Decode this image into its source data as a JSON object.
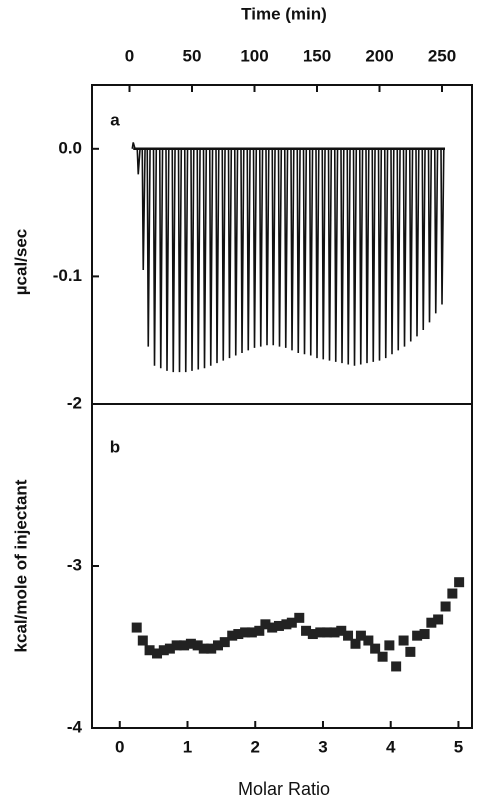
{
  "chart_data": [
    {
      "type": "impulse",
      "panel_label": "a",
      "x_label": "Time (min)",
      "y_label": "µcal/sec",
      "color": "#111111",
      "x": [
        3,
        7,
        11,
        15,
        20,
        25,
        30,
        35,
        40,
        45,
        50,
        55,
        60,
        65,
        70,
        75,
        80,
        85,
        90,
        95,
        100,
        105,
        110,
        115,
        120,
        125,
        130,
        135,
        140,
        145,
        150,
        155,
        160,
        165,
        170,
        175,
        180,
        185,
        190,
        195,
        200,
        205,
        210,
        215,
        220,
        225,
        230,
        235,
        240,
        245,
        250
      ],
      "values": [
        0.005,
        -0.02,
        -0.095,
        -0.155,
        -0.17,
        -0.172,
        -0.174,
        -0.175,
        -0.175,
        -0.175,
        -0.174,
        -0.173,
        -0.172,
        -0.17,
        -0.168,
        -0.166,
        -0.164,
        -0.162,
        -0.16,
        -0.158,
        -0.156,
        -0.155,
        -0.154,
        -0.154,
        -0.155,
        -0.156,
        -0.158,
        -0.16,
        -0.161,
        -0.162,
        -0.164,
        -0.165,
        -0.166,
        -0.167,
        -0.168,
        -0.169,
        -0.17,
        -0.169,
        -0.168,
        -0.167,
        -0.166,
        -0.164,
        -0.161,
        -0.158,
        -0.155,
        -0.151,
        -0.147,
        -0.142,
        -0.136,
        -0.129,
        -0.122
      ],
      "xlim": [
        -30,
        274
      ],
      "xticks": [
        0,
        50,
        100,
        150,
        200,
        250
      ],
      "ylim": [
        -0.2,
        0.05
      ],
      "yticks": [
        {
          "value": 0,
          "label": "0.0"
        },
        -0.1
      ]
    },
    {
      "type": "scatter",
      "panel_label": "b",
      "x_label": "Molar Ratio",
      "y_label": "kcal/mole of injectant",
      "color": "#222222",
      "x": [
        0.25,
        0.34,
        0.44,
        0.55,
        0.65,
        0.74,
        0.84,
        0.95,
        1.05,
        1.15,
        1.24,
        1.35,
        1.45,
        1.55,
        1.66,
        1.75,
        1.85,
        1.95,
        2.06,
        2.15,
        2.25,
        2.35,
        2.46,
        2.54,
        2.65,
        2.75,
        2.85,
        2.96,
        3.06,
        3.17,
        3.27,
        3.37,
        3.48,
        3.56,
        3.67,
        3.77,
        3.88,
        3.98,
        4.08,
        4.19,
        4.29,
        4.39,
        4.5,
        4.6,
        4.7,
        4.81,
        4.91,
        5.01
      ],
      "values": [
        -3.38,
        -3.46,
        -3.52,
        -3.54,
        -3.52,
        -3.51,
        -3.49,
        -3.49,
        -3.48,
        -3.49,
        -3.51,
        -3.51,
        -3.49,
        -3.47,
        -3.43,
        -3.42,
        -3.41,
        -3.41,
        -3.4,
        -3.36,
        -3.38,
        -3.37,
        -3.36,
        -3.35,
        -3.32,
        -3.4,
        -3.42,
        -3.41,
        -3.41,
        -3.41,
        -3.4,
        -3.43,
        -3.48,
        -3.43,
        -3.46,
        -3.51,
        -3.56,
        -3.49,
        -3.62,
        -3.46,
        -3.53,
        -3.43,
        -3.42,
        -3.35,
        -3.33,
        -3.25,
        -3.17,
        -3.1
      ],
      "xlim": [
        -0.41,
        5.2
      ],
      "xticks": [
        0,
        1,
        2,
        3,
        4,
        5
      ],
      "ylim": [
        -4,
        -2
      ],
      "yticks": [
        -2,
        -3,
        -4
      ]
    }
  ]
}
